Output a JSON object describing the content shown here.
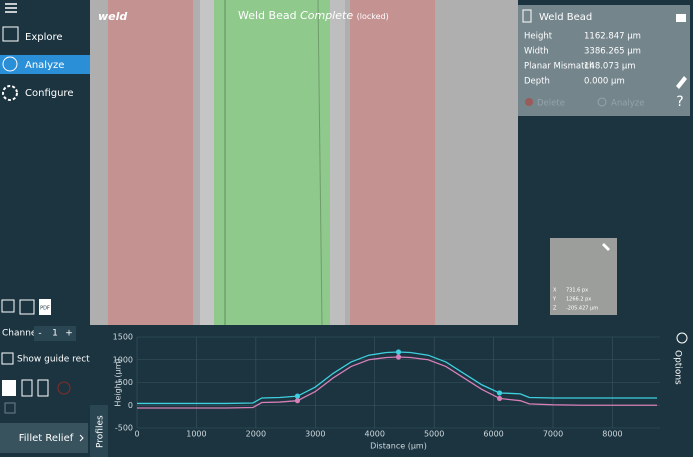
{
  "sidebar": {
    "menu": [
      "Explore",
      "Analyze",
      "Configure"
    ],
    "pdf_icon": "PDF",
    "channel_label": "Channel",
    "channel_buttons": [
      "-",
      "+"
    ],
    "channel_value": "1",
    "guide_checkbox": "Show guide rectangle",
    "preset_button": "Fillet Relief"
  },
  "image": {
    "layer_label": "weld",
    "title": "Weld Bead",
    "status": "Complete",
    "lock_note": "(locked)"
  },
  "measurement_panel": {
    "title": "Weld Bead",
    "rows": [
      [
        "Height",
        "1162.847 µm"
      ],
      [
        "Width",
        "3386.265 µm"
      ],
      [
        "Planar Mismatch",
        "148.073 µm"
      ],
      [
        "Depth",
        "0.000 µm"
      ]
    ],
    "actions": [
      "Delete",
      "Analyze"
    ],
    "help": "?"
  },
  "cursor_inset": {
    "rows": [
      [
        "X",
        "731.6 px"
      ],
      [
        "Y",
        "1266.2 px"
      ],
      [
        "Z",
        "-205.427 µm"
      ]
    ]
  },
  "profile_tab": "Profiles",
  "options_tab": "Options",
  "chart_data": {
    "type": "line",
    "x_label": "Distance (µm)",
    "y_label": "Height (µm)",
    "x": [
      0,
      500,
      1000,
      1500,
      1950,
      2100,
      2400,
      2700,
      3000,
      3300,
      3600,
      3900,
      4200,
      4400,
      4600,
      4900,
      5200,
      5500,
      5800,
      6100,
      6300,
      6450,
      6600,
      7000,
      7500,
      8000,
      8500,
      8750
    ],
    "series": [
      {
        "color": "#3fd0e0",
        "values": [
          40,
          40,
          40,
          40,
          50,
          160,
          170,
          200,
          400,
          700,
          950,
          1100,
          1160,
          1170,
          1160,
          1100,
          950,
          700,
          450,
          270,
          260,
          250,
          170,
          160,
          160,
          160,
          160,
          160
        ]
      },
      {
        "color": "#d77fb8",
        "values": [
          -60,
          -60,
          -60,
          -60,
          -50,
          60,
          70,
          100,
          300,
          600,
          850,
          1000,
          1050,
          1060,
          1050,
          1000,
          850,
          600,
          350,
          150,
          120,
          100,
          30,
          10,
          0,
          0,
          0,
          0
        ]
      }
    ],
    "cursor_x": [
      2700,
      4400,
      6100
    ],
    "xlim": [
      0,
      8800
    ],
    "ylim": [
      -500,
      1500
    ],
    "xticks": [
      0,
      1000,
      2000,
      3000,
      4000,
      5000,
      6000,
      7000,
      8000
    ],
    "yticks": [
      -500,
      0,
      500,
      1000,
      1500
    ],
    "grid": true
  }
}
